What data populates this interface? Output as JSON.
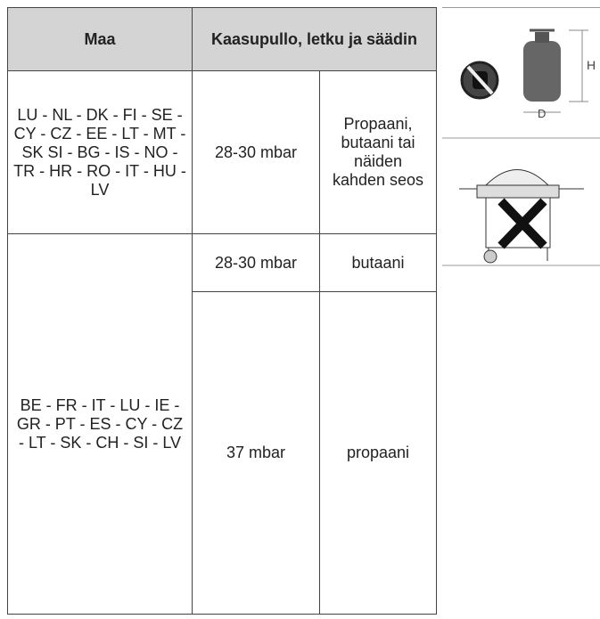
{
  "table": {
    "header": [
      "Maa",
      "Kaasupullo, letku ja säädin"
    ],
    "rows": [
      [
        "LU - NL - DK - FI - SE - CY - CZ - EE - LT - MT - SK SI - BG - IS - NO - TR - HR - RO - IT - HU - LV",
        "28-30 mbar",
        "Propaani, butaani tai näiden kahden seos"
      ],
      [
        "BE - FR - IT - LU - IE - GR - PT - ES - CY - CZ - LT - SK - CH - SI - LV",
        "28-30 mbar",
        "butaani"
      ],
      [
        null,
        "37 mbar",
        "propaani"
      ]
    ]
  },
  "images": {
    "cylinder_labels": [
      "H",
      "D"
    ]
  }
}
